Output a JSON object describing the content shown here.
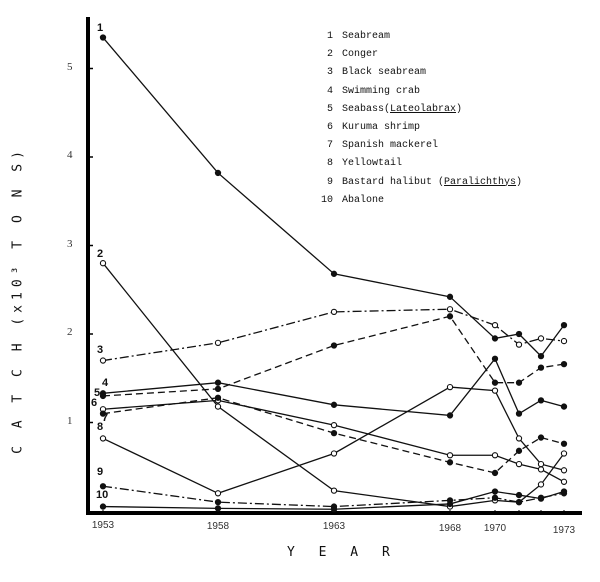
{
  "chart_data": {
    "type": "line",
    "title": "",
    "xlabel": "YEAR",
    "ylabel": "CATCH (x10^3 TONS)",
    "ylabel_parts": {
      "prefix": "CATCH (x10",
      "sup": "3",
      "suffix": " TONS)"
    },
    "ylim": [
      0,
      5.6
    ],
    "yticks": [
      1,
      2,
      3,
      4,
      5
    ],
    "xticks": [
      "1953",
      "1958",
      "1963",
      "1968",
      "1970",
      "1973"
    ],
    "x": [
      1953,
      1958,
      1963,
      1968,
      1970,
      1971,
      1972,
      1973
    ],
    "grid": false,
    "legend_position": "upper right",
    "series": [
      {
        "id": 1,
        "name": "Seabream",
        "style": "solid",
        "marker": "filled",
        "values": [
          5.35,
          3.82,
          2.68,
          2.42,
          1.95,
          2.0,
          1.75,
          2.1
        ]
      },
      {
        "id": 2,
        "name": "Conger",
        "style": "solid",
        "marker": "open",
        "values": [
          2.8,
          1.18,
          0.23,
          0.05,
          0.12,
          0.1,
          0.3,
          0.65
        ]
      },
      {
        "id": 3,
        "name": "Black seabream",
        "style": "dashdot",
        "marker": "open",
        "values": [
          1.7,
          1.9,
          2.25,
          2.28,
          2.1,
          1.88,
          1.95,
          1.92
        ]
      },
      {
        "id": 4,
        "name": "Swimming crab",
        "style": "solid",
        "marker": "filled",
        "values": [
          1.33,
          1.45,
          1.2,
          1.08,
          1.72,
          1.1,
          1.25,
          1.18
        ]
      },
      {
        "id": 5,
        "name": "Seabass (Lateolabrax)",
        "style": "dashed",
        "marker": "filled",
        "values": [
          1.3,
          1.38,
          1.87,
          2.2,
          1.45,
          1.45,
          1.62,
          1.66
        ]
      },
      {
        "id": 6,
        "name": "Kuruma shrimp",
        "style": "solid",
        "marker": "open",
        "values": [
          1.15,
          1.25,
          0.97,
          0.63,
          0.63,
          0.53,
          0.47,
          0.33
        ]
      },
      {
        "id": 7,
        "name": "Spanish mackerel",
        "style": "dashed",
        "marker": "filled",
        "values": [
          1.1,
          1.28,
          0.88,
          0.55,
          0.43,
          0.68,
          0.83,
          0.76
        ]
      },
      {
        "id": 8,
        "name": "Yellowtail",
        "style": "solid",
        "marker": "open",
        "values": [
          0.82,
          0.2,
          0.65,
          1.4,
          1.36,
          0.82,
          0.53,
          0.46
        ]
      },
      {
        "id": 9,
        "name": "Bastard halibut (Paralichthys)",
        "style": "dashdot",
        "marker": "filled",
        "values": [
          0.28,
          0.1,
          0.05,
          0.12,
          0.15,
          0.1,
          0.15,
          0.2
        ]
      },
      {
        "id": 10,
        "name": "Abalone",
        "style": "solid",
        "marker": "filled",
        "values": [
          0.05,
          0.03,
          0.02,
          0.08,
          0.22,
          0.18,
          0.14,
          0.22
        ]
      }
    ]
  },
  "legend": [
    {
      "num": "1",
      "name": "Seabream",
      "italic": ""
    },
    {
      "num": "2",
      "name": "Conger",
      "italic": ""
    },
    {
      "num": "3",
      "name": "Black seabream",
      "italic": ""
    },
    {
      "num": "4",
      "name": "Swimming crab",
      "italic": ""
    },
    {
      "num": "5",
      "name": "Seabass(",
      "italic": "Lateolabrax",
      "tail": ")"
    },
    {
      "num": "6",
      "name": "Kuruma shrimp",
      "italic": ""
    },
    {
      "num": "7",
      "name": "Spanish mackerel",
      "italic": ""
    },
    {
      "num": "8",
      "name": "Yellowtail",
      "italic": ""
    },
    {
      "num": "9",
      "name": "Bastard halibut (",
      "italic": "Paralichthys",
      "tail": ")"
    },
    {
      "num": "10",
      "name": "Abalone",
      "italic": ""
    }
  ],
  "axis": {
    "x_title": "Y E A R",
    "y_title": "C A T C H   (x10³ T O N S)"
  }
}
